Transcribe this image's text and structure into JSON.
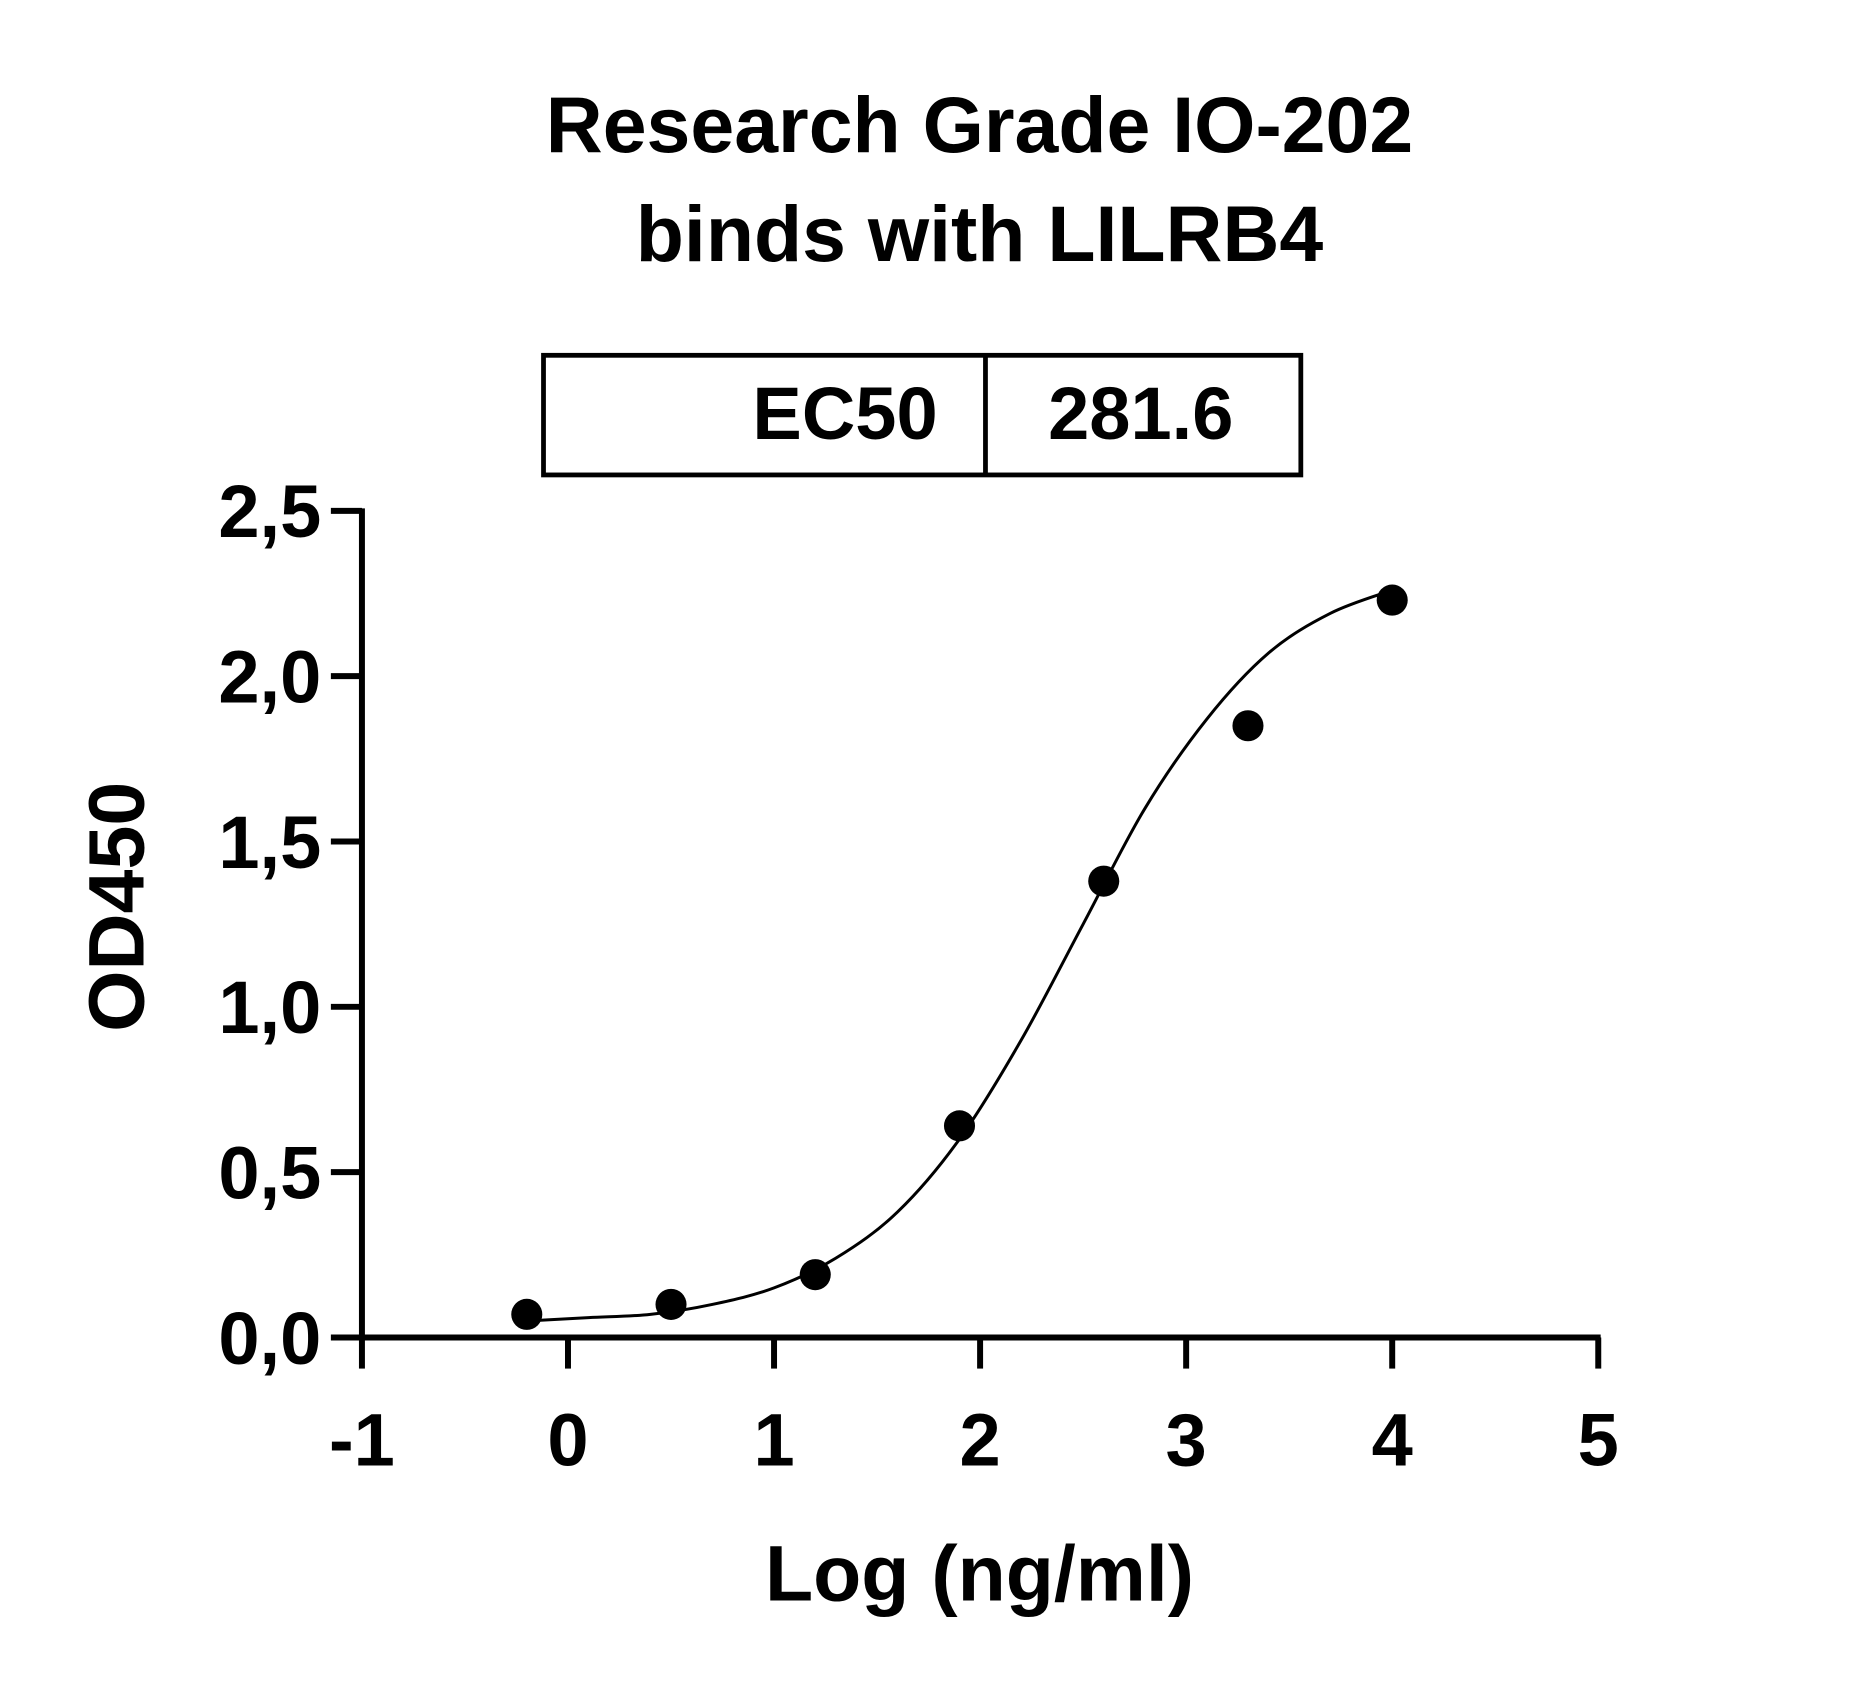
{
  "chart_data": {
    "type": "scatter",
    "title": [
      "Research Grade IO-202",
      "binds with LILRB4"
    ],
    "ec50_table": {
      "label": "EC50",
      "value": "281.6"
    },
    "x_label": "Log (ng/ml)",
    "y_label": "OD450",
    "series": [
      {
        "color": "#000000",
        "x": [
          -0.2,
          0.5,
          1.2,
          1.9,
          2.6,
          3.3,
          4.0
        ],
        "values": [
          0.07,
          0.1,
          0.19,
          0.64,
          1.38,
          1.85,
          2.23
        ]
      }
    ],
    "curve": {
      "color": "#000000",
      "x": [
        -0.2,
        0.1,
        0.4,
        0.7,
        1.0,
        1.3,
        1.6,
        1.9,
        2.2,
        2.5,
        2.8,
        3.1,
        3.4,
        3.7,
        4.0
      ],
      "values": [
        0.05,
        0.06,
        0.07,
        0.1,
        0.15,
        0.24,
        0.38,
        0.6,
        0.9,
        1.25,
        1.6,
        1.87,
        2.07,
        2.19,
        2.26
      ]
    },
    "xlim": [
      -1,
      5
    ],
    "xticks": [
      -1,
      0,
      1,
      2,
      3,
      4,
      5
    ],
    "ylim": [
      0,
      2.5
    ],
    "yticks": [
      {
        "value": 0,
        "label": "0,0"
      },
      {
        "value": 0.5,
        "label": "0,5"
      },
      {
        "value": 1.0,
        "label": "1,0"
      },
      {
        "value": 1.5,
        "label": "1,5"
      },
      {
        "value": 2.0,
        "label": "2,0"
      },
      {
        "value": 2.5,
        "label": "2,5"
      }
    ]
  }
}
